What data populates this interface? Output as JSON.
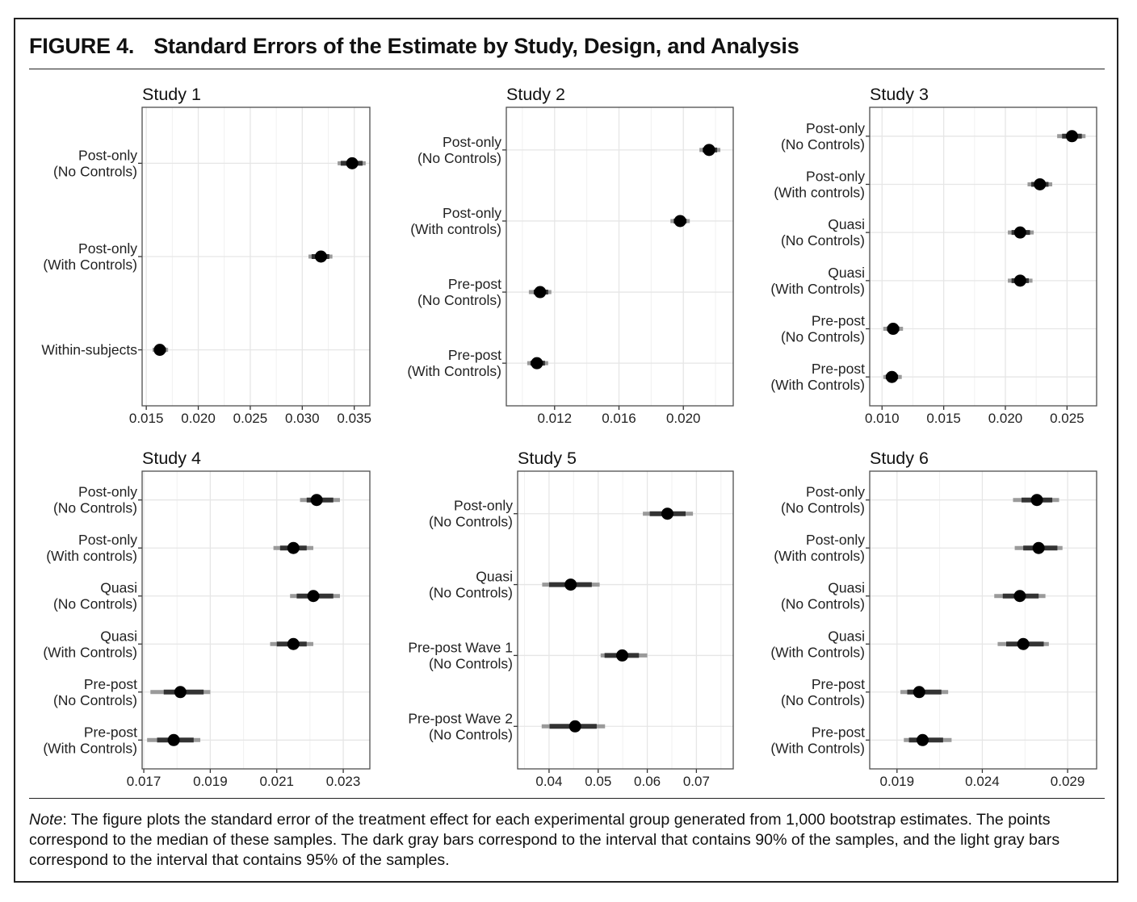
{
  "figure": {
    "label": "FIGURE 4.",
    "title": "Standard Errors of the Estimate by Study, Design, and Analysis"
  },
  "note": {
    "lead": "Note",
    "text": ": The figure plots the standard error of the treatment effect for each experimental group generated from 1,000 bootstrap estimates. The points correspond to the median of these samples. The dark gray bars correspond to the interval that contains 90% of the samples, and the light gray bars correspond to the interval that contains 95% of the samples."
  },
  "colors": {
    "point": "#000000",
    "interval_90": "#333333",
    "interval_95": "#9a9a9a",
    "grid": "#e6e6e6",
    "panel_border": "#4d4d4d"
  },
  "chart_data": [
    {
      "type": "scatter",
      "title": "Study 1",
      "grid": true,
      "xlim": [
        0.0146,
        0.0365
      ],
      "xticks": [
        0.015,
        0.02,
        0.025,
        0.03,
        0.035
      ],
      "xtick_labels": [
        "0.015",
        "0.020",
        "0.025",
        "0.030",
        "0.035"
      ],
      "rows": [
        {
          "label": [
            "Post-only",
            "(No Controls)"
          ],
          "median": 0.0348,
          "ci90": [
            0.0337,
            0.0358
          ],
          "ci95": [
            0.0334,
            0.0361
          ]
        },
        {
          "label": [
            "Post-only",
            "(With Controls)"
          ],
          "median": 0.0318,
          "ci90": [
            0.0309,
            0.0326
          ],
          "ci95": [
            0.0306,
            0.0329
          ]
        },
        {
          "label": [
            "Within-subjects"
          ],
          "median": 0.0163,
          "ci90": [
            0.0158,
            0.0169
          ],
          "ci95": [
            0.0156,
            0.0171
          ]
        }
      ]
    },
    {
      "type": "scatter",
      "title": "Study 2",
      "grid": true,
      "xlim": [
        0.009,
        0.0231
      ],
      "xticks": [
        0.012,
        0.016,
        0.02
      ],
      "xtick_labels": [
        "0.012",
        "0.016",
        "0.020"
      ],
      "rows": [
        {
          "label": [
            "Post-only",
            "(No Controls)"
          ],
          "median": 0.0216,
          "ci90": [
            0.0212,
            0.0221
          ],
          "ci95": [
            0.021,
            0.0223
          ]
        },
        {
          "label": [
            "Post-only",
            "(With controls)"
          ],
          "median": 0.0198,
          "ci90": [
            0.0194,
            0.0202
          ],
          "ci95": [
            0.0192,
            0.0204
          ]
        },
        {
          "label": [
            "Pre-post",
            "(No Controls)"
          ],
          "median": 0.0111,
          "ci90": [
            0.0107,
            0.0116
          ],
          "ci95": [
            0.0104,
            0.0118
          ]
        },
        {
          "label": [
            "Pre-post",
            "(With Controls)"
          ],
          "median": 0.0109,
          "ci90": [
            0.0105,
            0.0114
          ],
          "ci95": [
            0.0103,
            0.0116
          ]
        }
      ]
    },
    {
      "type": "scatter",
      "title": "Study 3",
      "grid": true,
      "xlim": [
        0.009,
        0.0274
      ],
      "xticks": [
        0.01,
        0.015,
        0.02,
        0.025
      ],
      "xtick_labels": [
        "0.010",
        "0.015",
        "0.020",
        "0.025"
      ],
      "rows": [
        {
          "label": [
            "Post-only",
            "(No Controls)"
          ],
          "median": 0.0254,
          "ci90": [
            0.0246,
            0.0262
          ],
          "ci95": [
            0.0242,
            0.0265
          ]
        },
        {
          "label": [
            "Post-only",
            "(With controls)"
          ],
          "median": 0.0228,
          "ci90": [
            0.0221,
            0.0235
          ],
          "ci95": [
            0.0218,
            0.0238
          ]
        },
        {
          "label": [
            "Quasi",
            "(No Controls)"
          ],
          "median": 0.0212,
          "ci90": [
            0.0205,
            0.022
          ],
          "ci95": [
            0.0202,
            0.0223
          ]
        },
        {
          "label": [
            "Quasi",
            "(With Controls)"
          ],
          "median": 0.0212,
          "ci90": [
            0.0205,
            0.0219
          ],
          "ci95": [
            0.0202,
            0.0222
          ]
        },
        {
          "label": [
            "Pre-post",
            "(No Controls)"
          ],
          "median": 0.0109,
          "ci90": [
            0.0104,
            0.0114
          ],
          "ci95": [
            0.0101,
            0.0117
          ]
        },
        {
          "label": [
            "Pre-post",
            "(With Controls)"
          ],
          "median": 0.0108,
          "ci90": [
            0.0103,
            0.0113
          ],
          "ci95": [
            0.0101,
            0.0116
          ]
        }
      ]
    },
    {
      "type": "scatter",
      "title": "Study 4",
      "grid": true,
      "xlim": [
        0.01695,
        0.0238
      ],
      "xticks": [
        0.017,
        0.019,
        0.021,
        0.023
      ],
      "xtick_labels": [
        "0.017",
        "0.019",
        "0.021",
        "0.023"
      ],
      "rows": [
        {
          "label": [
            "Post-only",
            "(No Controls)"
          ],
          "median": 0.0222,
          "ci90": [
            0.0219,
            0.0227
          ],
          "ci95": [
            0.0217,
            0.0229
          ]
        },
        {
          "label": [
            "Post-only",
            "(With controls)"
          ],
          "median": 0.0215,
          "ci90": [
            0.0211,
            0.0219
          ],
          "ci95": [
            0.0209,
            0.0221
          ]
        },
        {
          "label": [
            "Quasi",
            "(No Controls)"
          ],
          "median": 0.0221,
          "ci90": [
            0.0216,
            0.0227
          ],
          "ci95": [
            0.0214,
            0.0229
          ]
        },
        {
          "label": [
            "Quasi",
            "(With Controls)"
          ],
          "median": 0.0215,
          "ci90": [
            0.021,
            0.0219
          ],
          "ci95": [
            0.0208,
            0.0221
          ]
        },
        {
          "label": [
            "Pre-post",
            "(No Controls)"
          ],
          "median": 0.0181,
          "ci90": [
            0.0176,
            0.0188
          ],
          "ci95": [
            0.0172,
            0.019
          ]
        },
        {
          "label": [
            "Pre-post",
            "(With Controls)"
          ],
          "median": 0.0179,
          "ci90": [
            0.0174,
            0.0185
          ],
          "ci95": [
            0.0171,
            0.0187
          ]
        }
      ]
    },
    {
      "type": "scatter",
      "title": "Study 5",
      "grid": true,
      "xlim": [
        0.0336,
        0.0775
      ],
      "xticks": [
        0.04,
        0.05,
        0.06,
        0.07
      ],
      "xtick_labels": [
        "0.04",
        "0.05",
        "0.06",
        "0.07"
      ],
      "rows": [
        {
          "label": [
            "Post-only",
            "(No Controls)"
          ],
          "median": 0.0641,
          "ci90": [
            0.0605,
            0.0678
          ],
          "ci95": [
            0.0591,
            0.0693
          ]
        },
        {
          "label": [
            "Quasi",
            "(No Controls)"
          ],
          "median": 0.0444,
          "ci90": [
            0.04,
            0.0487
          ],
          "ci95": [
            0.0386,
            0.0503
          ]
        },
        {
          "label": [
            "Pre-post Wave 1",
            "(No Controls)"
          ],
          "median": 0.0549,
          "ci90": [
            0.0513,
            0.0583
          ],
          "ci95": [
            0.0505,
            0.06
          ]
        },
        {
          "label": [
            "Pre-post Wave 2",
            "(No Controls)"
          ],
          "median": 0.0453,
          "ci90": [
            0.0401,
            0.0497
          ],
          "ci95": [
            0.0385,
            0.0514
          ]
        }
      ]
    },
    {
      "type": "scatter",
      "title": "Study 6",
      "grid": true,
      "xlim": [
        0.0174,
        0.0307
      ],
      "xticks": [
        0.019,
        0.024,
        0.029
      ],
      "xtick_labels": [
        "0.019",
        "0.024",
        "0.029"
      ],
      "rows": [
        {
          "label": [
            "Post-only",
            "(No Controls)"
          ],
          "median": 0.0272,
          "ci90": [
            0.0263,
            0.0281
          ],
          "ci95": [
            0.0258,
            0.0285
          ]
        },
        {
          "label": [
            "Post-only",
            "(With controls)"
          ],
          "median": 0.0273,
          "ci90": [
            0.0264,
            0.0284
          ],
          "ci95": [
            0.0259,
            0.0287
          ]
        },
        {
          "label": [
            "Quasi",
            "(No Controls)"
          ],
          "median": 0.0262,
          "ci90": [
            0.0252,
            0.0273
          ],
          "ci95": [
            0.0247,
            0.0277
          ]
        },
        {
          "label": [
            "Quasi",
            "(With Controls)"
          ],
          "median": 0.0264,
          "ci90": [
            0.0254,
            0.0276
          ],
          "ci95": [
            0.0249,
            0.0279
          ]
        },
        {
          "label": [
            "Pre-post",
            "(No Controls)"
          ],
          "median": 0.0203,
          "ci90": [
            0.0196,
            0.0216
          ],
          "ci95": [
            0.0192,
            0.022
          ]
        },
        {
          "label": [
            "Pre-post",
            "(With Controls)"
          ],
          "median": 0.0205,
          "ci90": [
            0.0197,
            0.0217
          ],
          "ci95": [
            0.0194,
            0.0222
          ]
        }
      ]
    }
  ]
}
